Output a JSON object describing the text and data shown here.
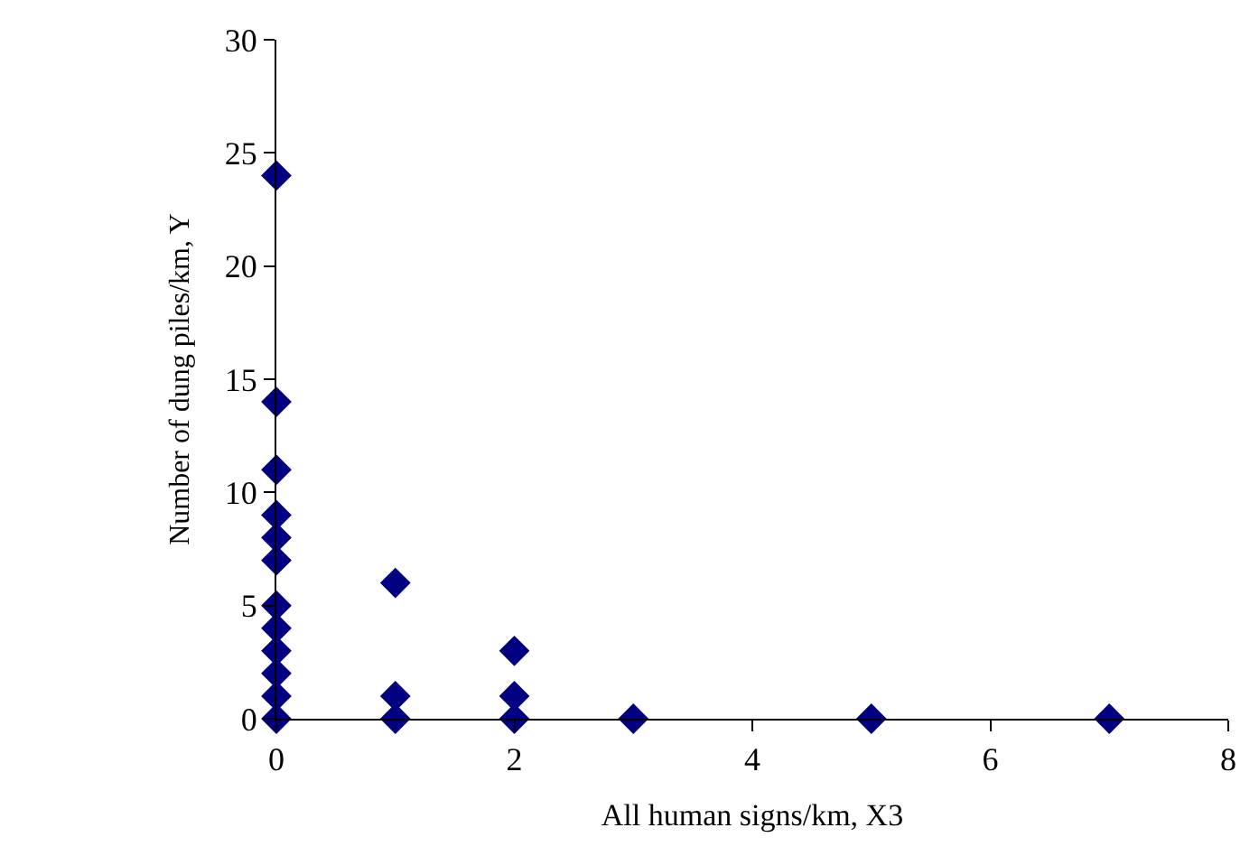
{
  "chart_data": {
    "type": "scatter",
    "xlabel": "All human signs/km, X3",
    "ylabel": "Number of dung piles/km, Y",
    "x": [
      0,
      0,
      0,
      0,
      0,
      0,
      0,
      0,
      0,
      0,
      0,
      0,
      1,
      1,
      1,
      2,
      2,
      2,
      3,
      5,
      7
    ],
    "values": [
      24,
      14,
      11,
      9,
      8,
      7,
      5,
      4,
      3,
      2,
      1,
      0,
      6,
      1,
      0,
      3,
      1,
      0,
      0,
      0,
      0
    ],
    "color": "#000080",
    "marker": "diamond",
    "xlim": [
      0,
      8
    ],
    "xticks": [
      0,
      2,
      4,
      6,
      8
    ],
    "ylim": [
      0,
      30
    ],
    "yticks": [
      0,
      5,
      10,
      15,
      20,
      25,
      30
    ]
  }
}
